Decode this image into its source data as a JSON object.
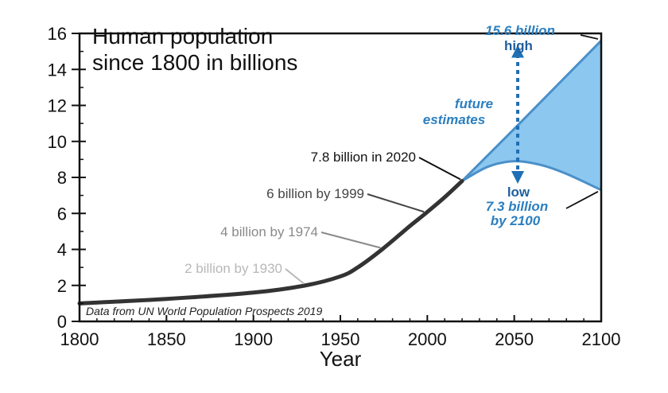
{
  "chart_data": {
    "type": "line",
    "title_lines": [
      "Human population",
      "since 1800 in billions"
    ],
    "xlabel": "Year",
    "ylabel": "",
    "xlim": [
      1800,
      2100
    ],
    "ylim": [
      0,
      16
    ],
    "x_ticks": [
      1800,
      1850,
      1900,
      1950,
      2000,
      2050,
      2100
    ],
    "y_ticks": [
      0,
      2,
      4,
      6,
      8,
      10,
      12,
      14,
      16
    ],
    "grid": false,
    "series": [
      {
        "role": "historical",
        "color": "#333333",
        "x": [
          1800,
          1850,
          1900,
          1930,
          1950,
          1960,
          1974,
          1990,
          1999,
          2010,
          2020
        ],
        "y": [
          1.0,
          1.25,
          1.6,
          2.0,
          2.5,
          3.0,
          4.0,
          5.3,
          6.0,
          6.9,
          7.8
        ]
      },
      {
        "role": "projection_high",
        "color": "#4a90c8",
        "x": [
          2020,
          2050,
          2100
        ],
        "y": [
          7.8,
          10.7,
          15.6
        ]
      },
      {
        "role": "projection_low",
        "color": "#4a90c8",
        "x": [
          2020,
          2035,
          2050,
          2065,
          2080,
          2100
        ],
        "y": [
          7.8,
          8.6,
          8.9,
          8.7,
          8.2,
          7.3
        ]
      }
    ],
    "projection_fill": "#8cc7f0",
    "projection_arrow": {
      "x": 2052,
      "y_from": 8.0,
      "y_to": 15.0
    },
    "annotations": [
      {
        "text": "2 billion by 1930",
        "x": 1930,
        "y": 2.0,
        "color": "#b8b8b8"
      },
      {
        "text": "4 billion by 1974",
        "x": 1974,
        "y": 4.0,
        "color": "#8a8a8a"
      },
      {
        "text": "6 billion by 1999",
        "x": 1999,
        "y": 6.0,
        "color": "#444444"
      },
      {
        "text": "7.8 billion in 2020",
        "x": 2020,
        "y": 7.8,
        "color": "#111111"
      }
    ],
    "high_label": {
      "value": "15.6 billion",
      "word": "high"
    },
    "low_label": {
      "word": "low",
      "value_lines": [
        "7.3 billion",
        "by 2100"
      ]
    },
    "estimate_label_lines": [
      "future",
      "estimates"
    ],
    "source": "Data from UN World Population Prospects 2019"
  }
}
